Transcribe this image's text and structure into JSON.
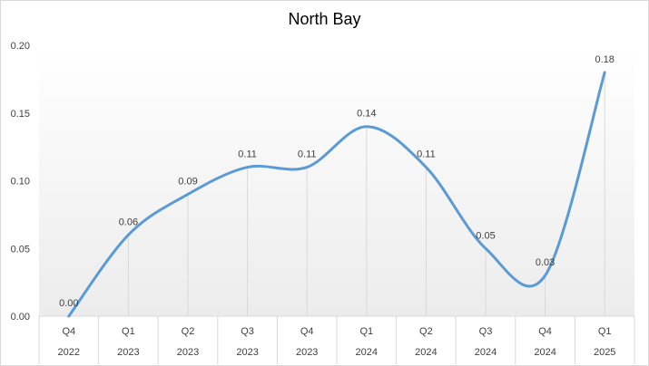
{
  "chart_data": {
    "type": "line",
    "title": "North Bay",
    "categories": [
      {
        "quarter": "Q4",
        "year": "2022"
      },
      {
        "quarter": "Q1",
        "year": "2023"
      },
      {
        "quarter": "Q2",
        "year": "2023"
      },
      {
        "quarter": "Q3",
        "year": "2023"
      },
      {
        "quarter": "Q4",
        "year": "2023"
      },
      {
        "quarter": "Q1",
        "year": "2024"
      },
      {
        "quarter": "Q2",
        "year": "2024"
      },
      {
        "quarter": "Q3",
        "year": "2024"
      },
      {
        "quarter": "Q4",
        "year": "2024"
      },
      {
        "quarter": "Q1",
        "year": "2025"
      }
    ],
    "values": [
      0.0,
      0.06,
      0.09,
      0.11,
      0.11,
      0.14,
      0.11,
      0.05,
      0.03,
      0.18
    ],
    "data_labels": [
      "0.00",
      "0.06",
      "0.09",
      "0.11",
      "0.11",
      "0.14",
      "0.11",
      "0.05",
      "0.03",
      "0.18"
    ],
    "y_ticks": [
      "0.00",
      "0.05",
      "0.10",
      "0.15",
      "0.20"
    ],
    "ylim": [
      0,
      0.2
    ],
    "line_color": "#5b9bd5",
    "smooth": true,
    "grid": "vertical category lines",
    "legend": "none"
  }
}
